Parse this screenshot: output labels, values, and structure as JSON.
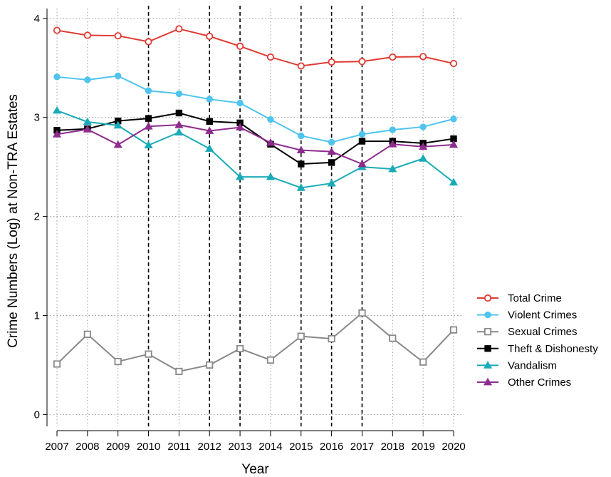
{
  "chart_data": {
    "type": "line",
    "title": "",
    "xlabel": "Year",
    "ylabel": "Crime Numbers (Log) at Non-TRA Estates",
    "x": [
      2007,
      2008,
      2009,
      2010,
      2011,
      2012,
      2013,
      2014,
      2015,
      2016,
      2017,
      2018,
      2019,
      2020
    ],
    "xticks": [
      "2007",
      "2008",
      "2009",
      "2010",
      "2011",
      "2012",
      "2013",
      "2014",
      "2015",
      "2016",
      "2017",
      "2018",
      "2019",
      "2020"
    ],
    "yticks": [
      "0",
      "1",
      "2",
      "3",
      "4"
    ],
    "ylim": [
      -0.12,
      4.1
    ],
    "grid": "dotted",
    "legend_position": "right",
    "vlines": [
      2010,
      2012,
      2013,
      2015,
      2016,
      2017
    ],
    "series": [
      {
        "name": "Total Crime",
        "color": "#e03a33",
        "marker": "circle-open",
        "values": [
          3.88,
          3.83,
          3.825,
          3.765,
          3.895,
          3.82,
          3.72,
          3.61,
          3.52,
          3.56,
          3.565,
          3.61,
          3.615,
          3.545
        ]
      },
      {
        "name": "Violent Crimes",
        "color": "#4fc4ee",
        "marker": "circle-filled",
        "values": [
          3.41,
          3.38,
          3.42,
          3.27,
          3.24,
          3.185,
          3.145,
          2.98,
          2.815,
          2.75,
          2.83,
          2.875,
          2.905,
          2.985
        ]
      },
      {
        "name": "Sexual Crimes",
        "color": "#888888",
        "marker": "square-open",
        "values": [
          0.51,
          0.81,
          0.535,
          0.61,
          0.435,
          0.5,
          0.665,
          0.55,
          0.79,
          0.765,
          1.025,
          0.77,
          0.53,
          0.855
        ]
      },
      {
        "name": "Theft & Dishonesty",
        "color": "#000000",
        "marker": "square-filled",
        "values": [
          2.87,
          2.885,
          2.965,
          2.99,
          3.045,
          2.96,
          2.945,
          2.73,
          2.53,
          2.545,
          2.76,
          2.76,
          2.74,
          2.785
        ]
      },
      {
        "name": "Vandalism",
        "color": "#1aabb8",
        "marker": "triangle-filled",
        "values": [
          3.07,
          2.955,
          2.92,
          2.72,
          2.85,
          2.685,
          2.4,
          2.4,
          2.29,
          2.335,
          2.5,
          2.48,
          2.585,
          2.345
        ]
      },
      {
        "name": "Other Crimes",
        "color": "#8e2c8e",
        "marker": "triangle-filled",
        "values": [
          2.83,
          2.88,
          2.725,
          2.91,
          2.925,
          2.865,
          2.9,
          2.745,
          2.67,
          2.655,
          2.53,
          2.73,
          2.705,
          2.725
        ]
      }
    ]
  }
}
